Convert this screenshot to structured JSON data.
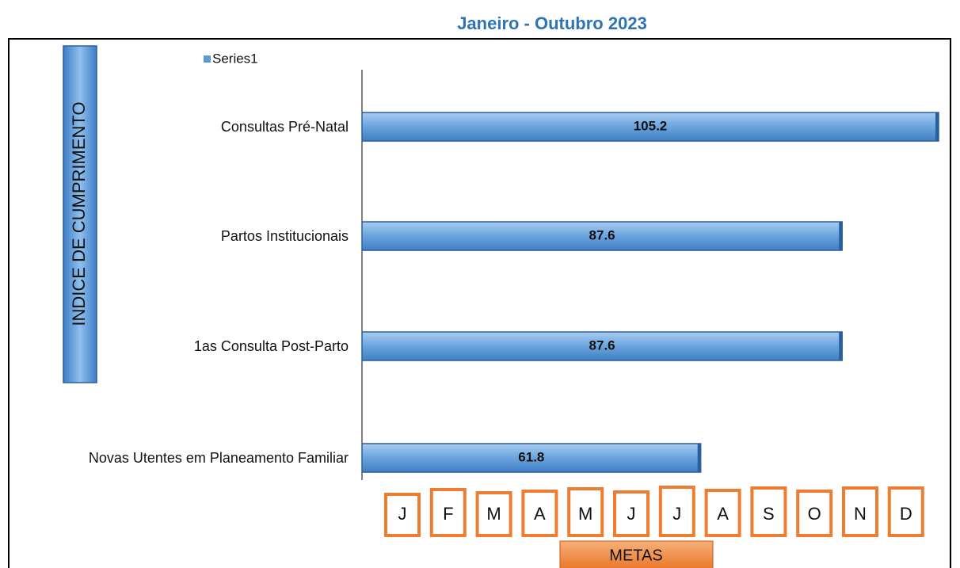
{
  "chart_data": {
    "type": "bar",
    "orientation": "horizontal",
    "title": "Janeiro -  Outubro 2023",
    "y_label": "INDICE DE CUMPRIMENTO",
    "categories": [
      "Consultas Pré-Natal",
      "Partos Institucionais",
      "1as Consulta Post-Parto",
      "Novas Utentes em Planeamento Familiar"
    ],
    "series": [
      {
        "name": "Series1",
        "color": "#5b9bd5",
        "values": [
          105.2,
          87.6,
          87.6,
          61.8
        ]
      }
    ],
    "month_labels": [
      "J",
      "F",
      "M",
      "A",
      "M",
      "J",
      "J",
      "A",
      "S",
      "O",
      "N",
      "D"
    ],
    "metas_label": "METAS"
  }
}
